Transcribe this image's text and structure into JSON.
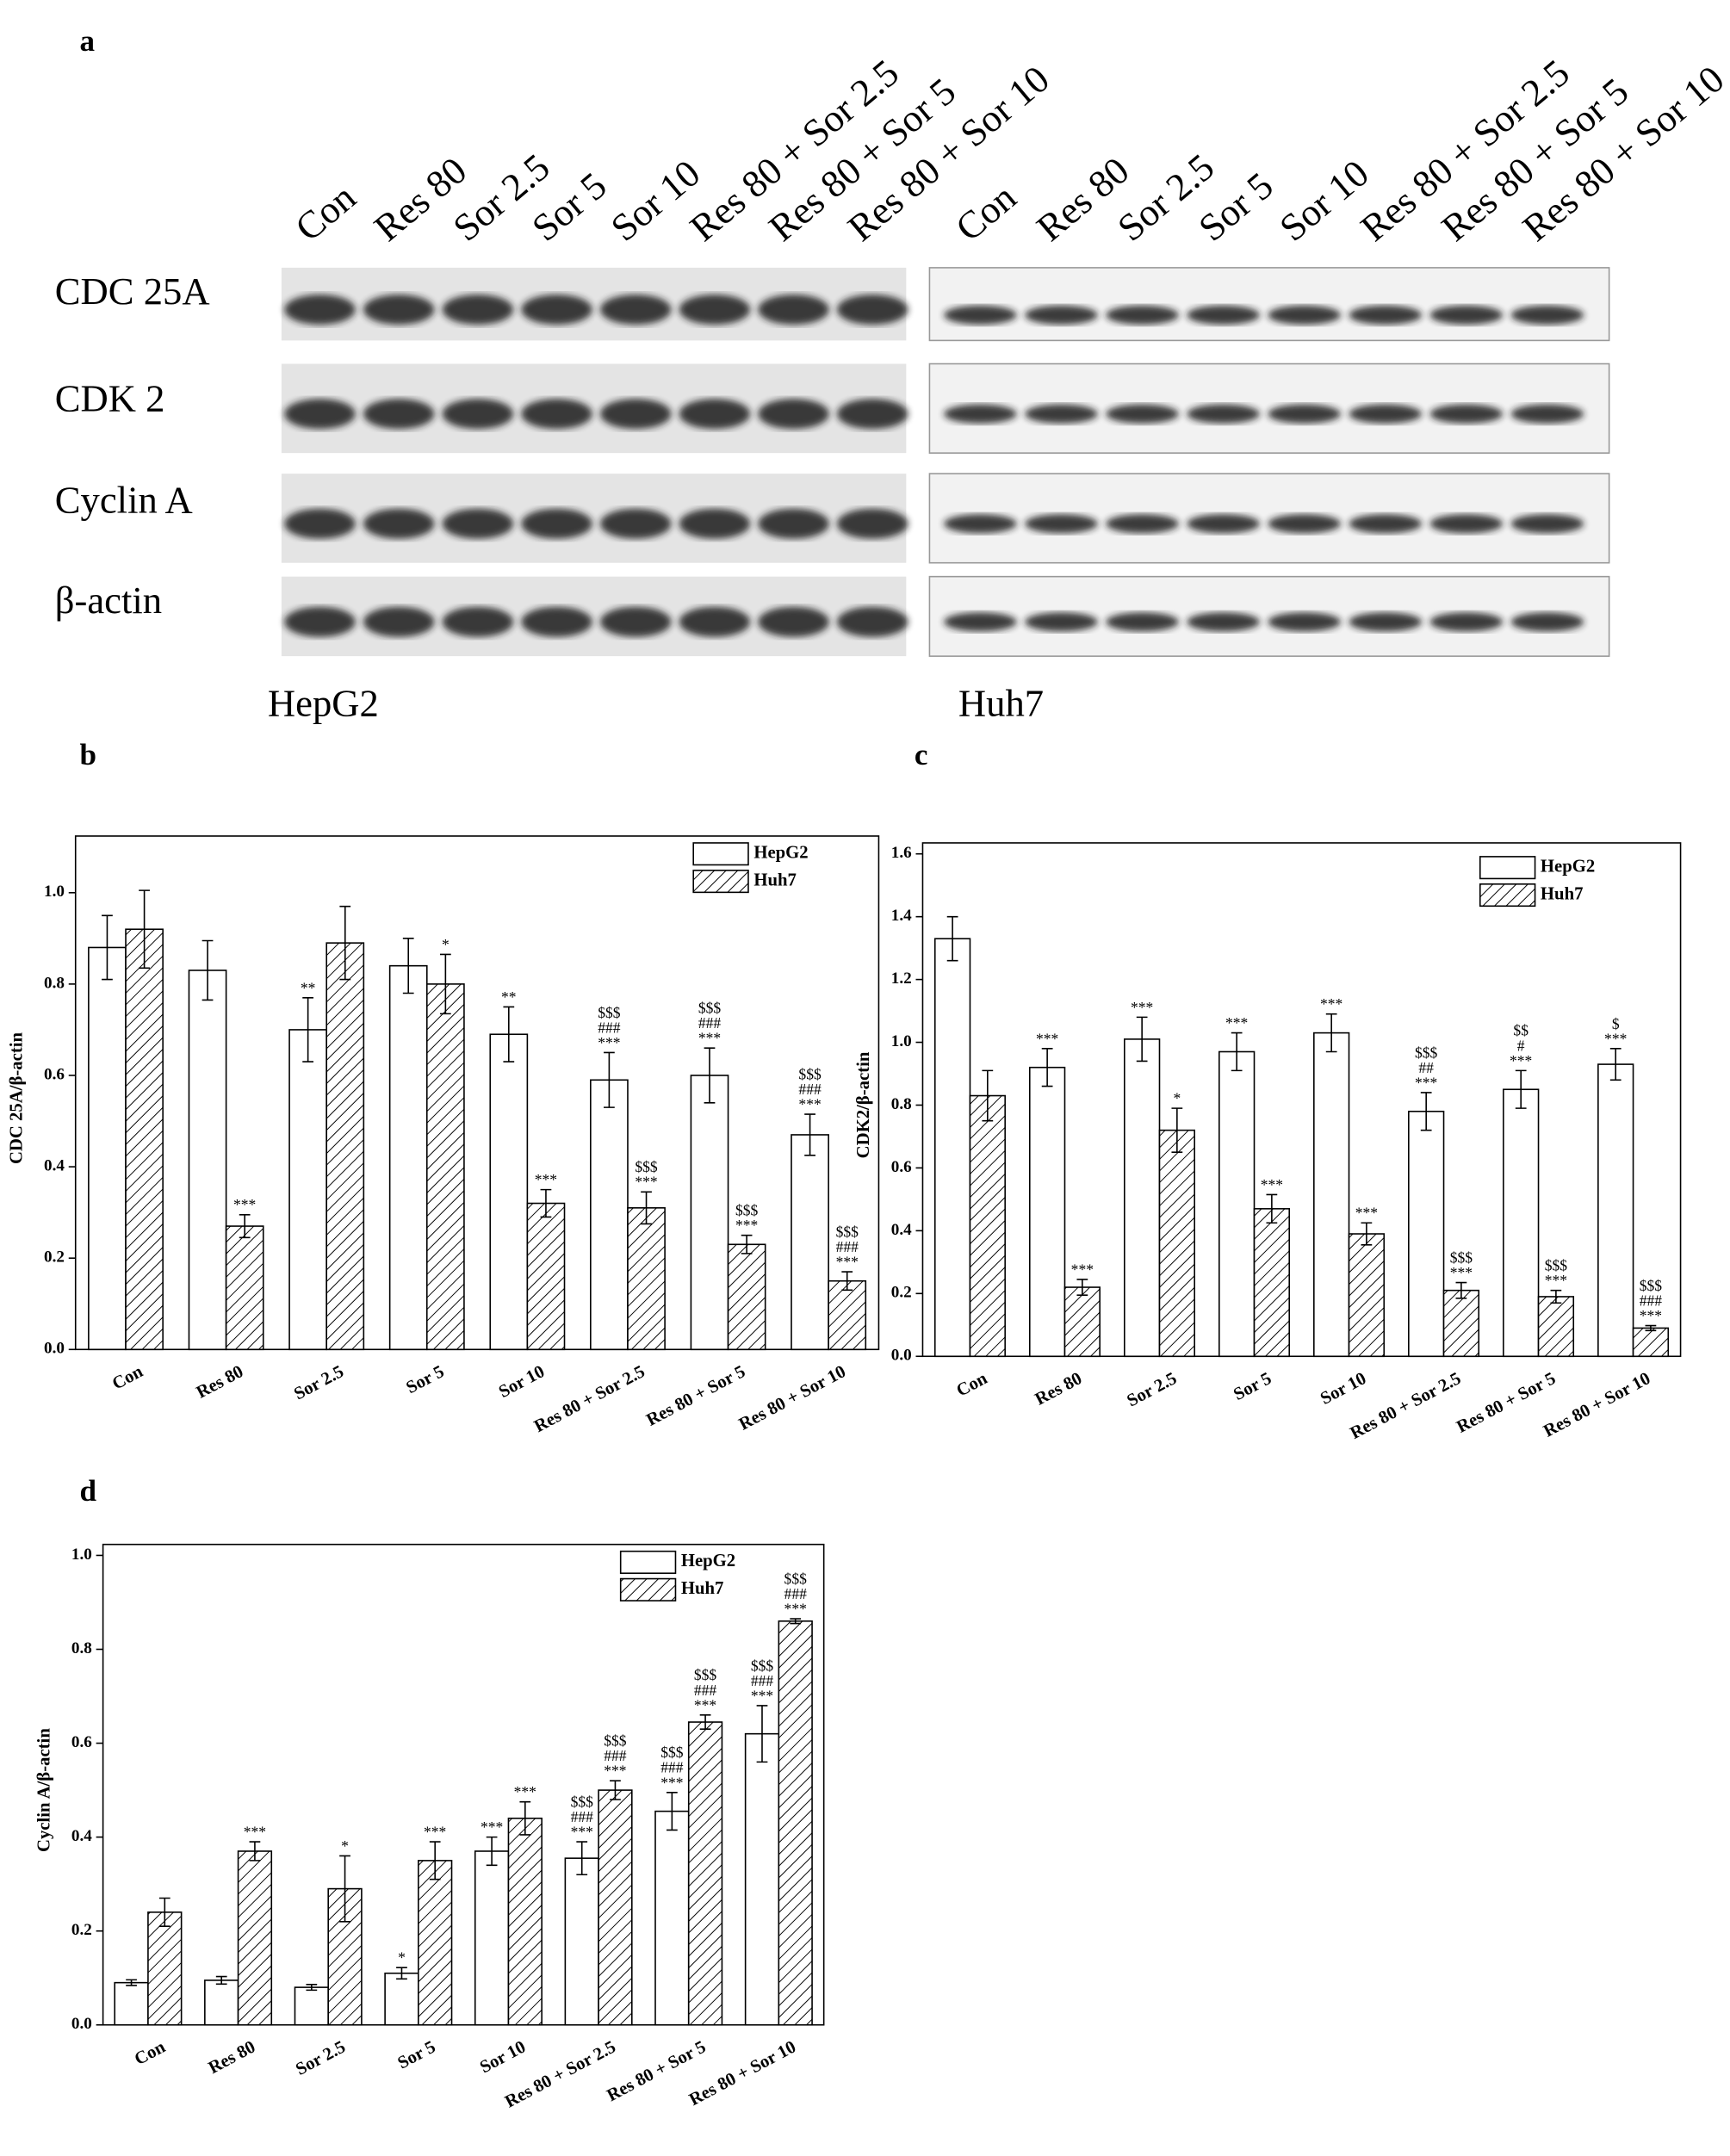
{
  "panel_a": {
    "panel_label": "a",
    "lanes_hepg2": [
      "Con",
      "Res 80",
      "Sor 2.5",
      "Sor 5",
      "Sor 10",
      "Res 80 + Sor 2.5",
      "Res 80 + Sor 5",
      "Res 80 + Sor 10"
    ],
    "lanes_huh7": [
      "Con",
      "Res 80",
      "Sor 2.5",
      "Sor 5",
      "Sor 10",
      "Res 80 + Sor 2.5",
      "Res 80 + Sor 5",
      "Res 80 + Sor 10"
    ],
    "proteins": [
      "CDC 25A",
      "CDK 2",
      "Cyclin A",
      "β-actin"
    ],
    "cell_lines": [
      "HepG2",
      "Huh7"
    ]
  },
  "chart_data": [
    {
      "type": "bar",
      "panel_label": "b",
      "y_label": "CDC 25A/β-actin",
      "categories": [
        "Con",
        "Res 80",
        "Sor 2.5",
        "Sor 5",
        "Sor 10",
        "Res 80 + Sor 2.5",
        "Res 80 + Sor 5",
        "Res 80 + Sor 10"
      ],
      "series": [
        {
          "name": "HepG2",
          "fill": "white",
          "values": [
            0.88,
            0.83,
            0.7,
            0.84,
            0.69,
            0.59,
            0.6,
            0.47
          ],
          "errors": [
            0.07,
            0.065,
            0.07,
            0.06,
            0.06,
            0.06,
            0.06,
            0.045
          ],
          "annotations": [
            [],
            [],
            [
              "**"
            ],
            [],
            [
              "**"
            ],
            [
              "$$$",
              "###",
              "***"
            ],
            [
              "$$$",
              "###",
              "***"
            ],
            [
              "$$$",
              "###",
              "***"
            ]
          ]
        },
        {
          "name": "Huh7",
          "fill": "hatched",
          "values": [
            0.92,
            0.27,
            0.89,
            0.8,
            0.32,
            0.31,
            0.23,
            0.15
          ],
          "errors": [
            0.085,
            0.025,
            0.08,
            0.065,
            0.03,
            0.035,
            0.02,
            0.02
          ],
          "annotations": [
            [],
            [
              "***"
            ],
            [],
            [
              "*"
            ],
            [
              "***"
            ],
            [
              "$$$",
              "***"
            ],
            [
              "$$$",
              "***"
            ],
            [
              "$$$",
              "###",
              "***"
            ]
          ]
        }
      ],
      "ylim": [
        0,
        1.1
      ],
      "yticks": [
        {
          "value": 0,
          "label": "0.0"
        },
        {
          "value": 0.2,
          "label": "0.2"
        },
        {
          "value": 0.4,
          "label": "0.4"
        },
        {
          "value": 0.6,
          "label": "0.6"
        },
        {
          "value": 0.8,
          "label": "0.8"
        },
        {
          "value": 1,
          "label": "1.0"
        }
      ],
      "legend": "upper right"
    },
    {
      "type": "bar",
      "panel_label": "c",
      "y_label": "CDK2/β-actin",
      "categories": [
        "Con",
        "Res 80",
        "Sor 2.5",
        "Sor 5",
        "Sor 10",
        "Res 80 + Sor 2.5",
        "Res 80 + Sor 5",
        "Res 80 + Sor 10"
      ],
      "series": [
        {
          "name": "HepG2",
          "fill": "white",
          "values": [
            1.33,
            0.92,
            1.01,
            0.97,
            1.03,
            0.78,
            0.85,
            0.93
          ],
          "errors": [
            0.07,
            0.06,
            0.07,
            0.06,
            0.06,
            0.06,
            0.06,
            0.05
          ],
          "annotations": [
            [],
            [
              "***"
            ],
            [
              "***"
            ],
            [
              "***"
            ],
            [
              "***"
            ],
            [
              "$$$",
              "##",
              "***"
            ],
            [
              "$$",
              "#",
              "***"
            ],
            [
              "$",
              "***"
            ]
          ]
        },
        {
          "name": "Huh7",
          "fill": "hatched",
          "values": [
            0.83,
            0.22,
            0.72,
            0.47,
            0.39,
            0.21,
            0.19,
            0.09
          ],
          "errors": [
            0.08,
            0.025,
            0.07,
            0.045,
            0.035,
            0.025,
            0.02,
            0.008
          ],
          "annotations": [
            [],
            [
              "***"
            ],
            [
              "*"
            ],
            [
              "***"
            ],
            [
              "***"
            ],
            [
              "$$$",
              "***"
            ],
            [
              "$$$",
              "***"
            ],
            [
              "$$$",
              "###",
              "***"
            ]
          ]
        }
      ],
      "ylim": [
        0,
        1.6
      ],
      "yticks": [
        {
          "value": 0,
          "label": "0.0"
        },
        {
          "value": 0.2,
          "label": "0.2"
        },
        {
          "value": 0.4,
          "label": "0.4"
        },
        {
          "value": 0.6,
          "label": "0.6"
        },
        {
          "value": 0.8,
          "label": "0.8"
        },
        {
          "value": 1,
          "label": "1.0"
        },
        {
          "value": 1.2,
          "label": "1.2"
        },
        {
          "value": 1.4,
          "label": "1.4"
        },
        {
          "value": 1.6,
          "label": "1.6"
        }
      ],
      "legend": "upper right"
    },
    {
      "type": "bar",
      "panel_label": "d",
      "y_label": "Cyclin A/β-actin",
      "categories": [
        "Con",
        "Res 80",
        "Sor 2.5",
        "Sor 5",
        "Sor 10",
        "Res 80 + Sor 2.5",
        "Res 80 + Sor 5",
        "Res 80 + Sor 10"
      ],
      "series": [
        {
          "name": "HepG2",
          "fill": "white",
          "values": [
            0.09,
            0.095,
            0.08,
            0.11,
            0.37,
            0.355,
            0.455,
            0.62
          ],
          "errors": [
            0.006,
            0.008,
            0.006,
            0.012,
            0.03,
            0.035,
            0.04,
            0.06
          ],
          "annotations": [
            [],
            [],
            [],
            [
              "*"
            ],
            [
              "***"
            ],
            [
              "$$$",
              "###",
              "***"
            ],
            [
              "$$$",
              "###",
              "***"
            ],
            [
              "$$$",
              "###",
              "***"
            ]
          ]
        },
        {
          "name": "Huh7",
          "fill": "hatched",
          "values": [
            0.24,
            0.37,
            0.29,
            0.35,
            0.44,
            0.5,
            0.645,
            0.86
          ],
          "errors": [
            0.03,
            0.02,
            0.07,
            0.04,
            0.035,
            0.02,
            0.015,
            0.005
          ],
          "annotations": [
            [],
            [
              "***"
            ],
            [
              "*"
            ],
            [
              "***"
            ],
            [
              "***"
            ],
            [
              "$$$",
              "###",
              "***"
            ],
            [
              "$$$",
              "###",
              "***"
            ],
            [
              "$$$",
              "###",
              "***"
            ]
          ]
        }
      ],
      "ylim": [
        0,
        1.0
      ],
      "yticks": [
        {
          "value": 0,
          "label": "0.0"
        },
        {
          "value": 0.2,
          "label": "0.2"
        },
        {
          "value": 0.4,
          "label": "0.4"
        },
        {
          "value": 0.6,
          "label": "0.6"
        },
        {
          "value": 0.8,
          "label": "0.8"
        },
        {
          "value": 1,
          "label": "1.0"
        }
      ],
      "legend": "upper right"
    }
  ]
}
